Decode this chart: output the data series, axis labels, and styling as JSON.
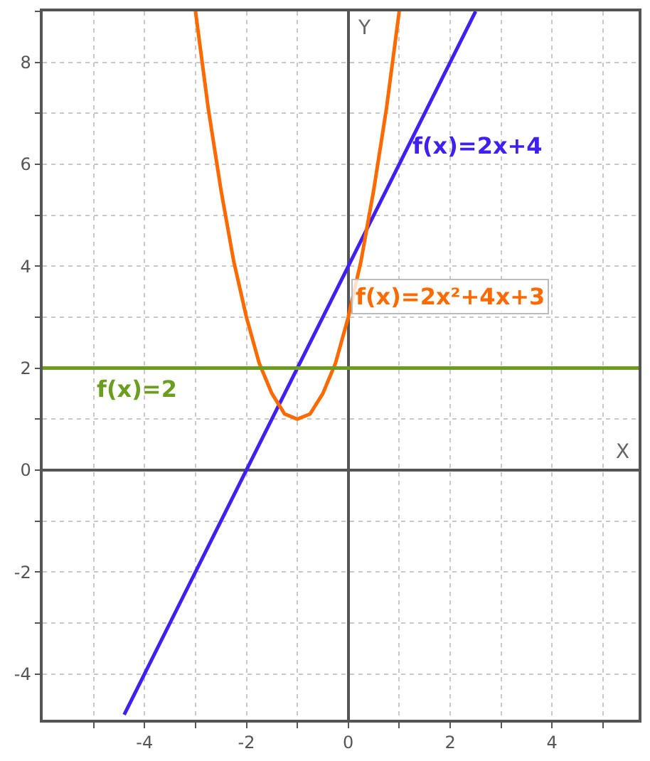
{
  "chart_data": {
    "type": "line",
    "xlabel": "X",
    "ylabel": "Y",
    "xlim": [
      -6,
      5.7
    ],
    "ylim": [
      -4.9,
      9
    ],
    "xticks": [
      {
        "value": -5,
        "label": null
      },
      -4,
      {
        "value": -3,
        "label": null
      },
      -2,
      {
        "value": -1,
        "label": null
      },
      0,
      {
        "value": 1,
        "label": null
      },
      2,
      {
        "value": 3,
        "label": null
      },
      4,
      {
        "value": 5,
        "label": null
      }
    ],
    "yticks": [
      -4,
      {
        "value": -3,
        "label": null
      },
      -2,
      {
        "value": -1,
        "label": null
      },
      0,
      {
        "value": 1,
        "label": null
      },
      2,
      {
        "value": 3,
        "label": null
      },
      4,
      {
        "value": 5,
        "label": null
      },
      6,
      {
        "value": 7,
        "label": null
      },
      8,
      {
        "value": 9,
        "label": null
      }
    ],
    "grid": true,
    "legend": false,
    "marker": "none",
    "line_style": "solid",
    "series": [
      {
        "name": "f(x)=2x+4",
        "color": "#4020f0",
        "x": [
          -4.4,
          -2,
          0,
          2.5
        ],
        "values": [
          -4.8,
          0,
          4,
          9
        ]
      },
      {
        "name": "f(x)=2x²+4x+3",
        "color": "#ff6a00",
        "x": [
          -3,
          -2.75,
          -2.5,
          -2.25,
          -2,
          -1.75,
          -1.5,
          -1.25,
          -1,
          -0.75,
          -0.5,
          -0.25,
          0,
          0.25,
          0.5,
          0.75,
          1
        ],
        "values": [
          9,
          7.1,
          5.5,
          4.1,
          3,
          2.1,
          1.5,
          1.1,
          1,
          1.1,
          1.5,
          2.1,
          3,
          4.1,
          5.5,
          7.1,
          9
        ]
      },
      {
        "name": "f(x)=2",
        "color": "#6b9e1f",
        "x": [
          -6,
          5.7
        ],
        "values": [
          2,
          2
        ]
      }
    ]
  }
}
